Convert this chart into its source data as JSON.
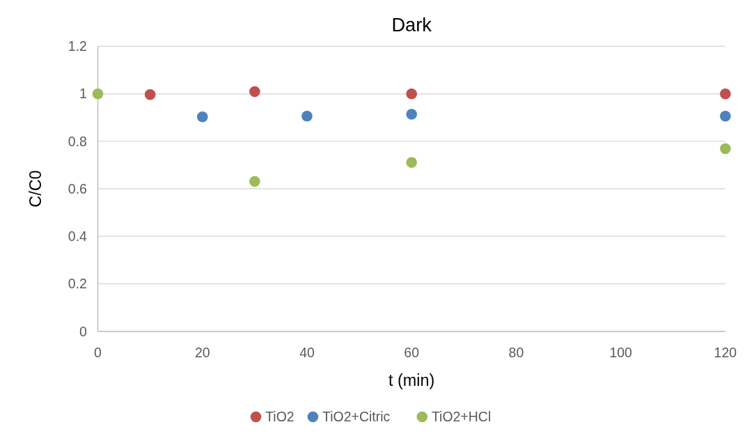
{
  "chart_data": {
    "type": "scatter",
    "title": "Dark",
    "xlabel": "t (min)",
    "ylabel": "C/C0",
    "xlim": [
      0,
      120
    ],
    "xticks": [
      0,
      20,
      40,
      60,
      80,
      100,
      120
    ],
    "ylim": [
      0,
      1.2
    ],
    "yticks": [
      0,
      0.2,
      0.4,
      0.6,
      0.8,
      1,
      1.2
    ],
    "grid": "y",
    "legend": "bottom",
    "marker": "circle",
    "series": [
      {
        "name": "TiO2",
        "color": "#c0504d",
        "x": [
          10,
          30,
          60,
          120
        ],
        "values": [
          0.997,
          1.009,
          1.0,
          1.0
        ]
      },
      {
        "name": "TiO2+Citric",
        "color": "#4f81bd",
        "x": [
          20,
          40,
          60,
          120
        ],
        "values": [
          0.903,
          0.906,
          0.914,
          0.906
        ]
      },
      {
        "name": "TiO2+HCl",
        "color": "#9bbb59",
        "x": [
          0,
          30,
          60,
          120
        ],
        "values": [
          1,
          0.631,
          0.711,
          0.769
        ]
      }
    ]
  }
}
